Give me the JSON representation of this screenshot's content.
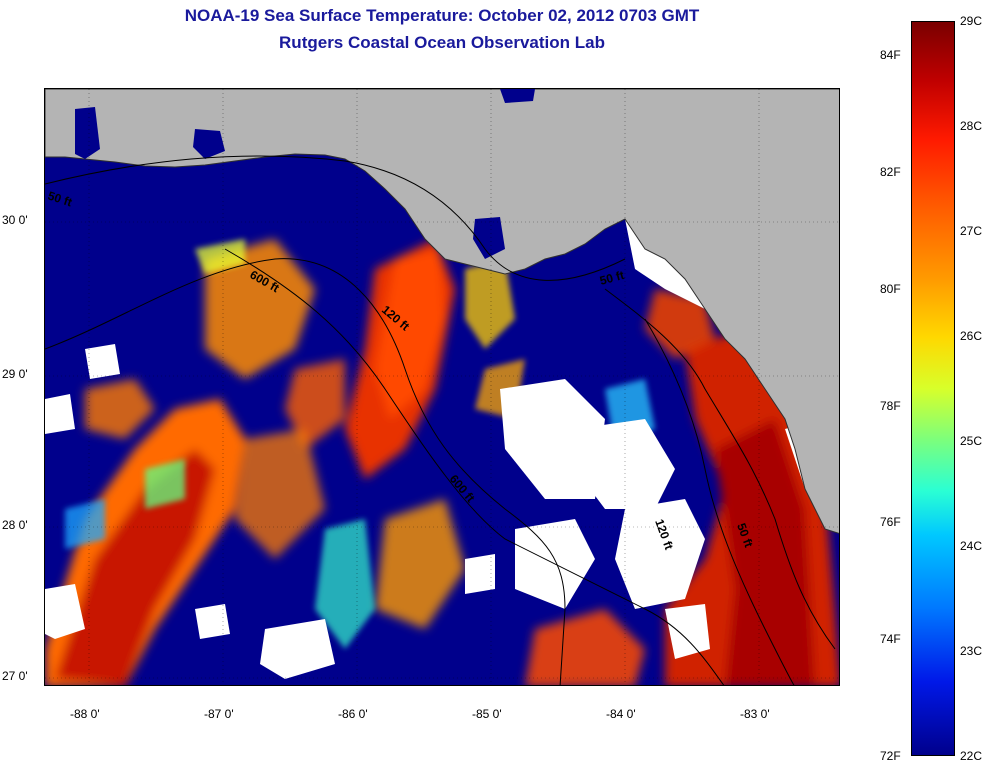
{
  "title": "NOAA-19 Sea Surface Temperature:  October 02, 2012 0703 GMT",
  "subtitle": "Rutgers Coastal Ocean Observation Lab",
  "colors": {
    "land": "#b4b4b4",
    "cloud_mask": "#ffffff",
    "cold_water": "#00008c",
    "warm_water": "#e03c00",
    "title_text": "#1a1a9c",
    "isobath": "#000000"
  },
  "map": {
    "lat_labels": [
      "30 0'",
      "29 0'",
      "28 0'",
      "27 0'"
    ],
    "lon_labels": [
      "-88 0'",
      "-87 0'",
      "-86 0'",
      "-85 0'",
      "-84 0'",
      "-83 0'"
    ],
    "isobath_labels": [
      "50 ft",
      "600 ft",
      "120 ft",
      "50 ft",
      "600 ft",
      "120 ft",
      "50 ft"
    ]
  },
  "colorbar": {
    "celsius_labels": [
      "29C",
      "28C",
      "27C",
      "26C",
      "25C",
      "24C",
      "23C",
      "22C"
    ],
    "fahrenheit_labels": [
      "84F",
      "82F",
      "80F",
      "78F",
      "76F",
      "74F",
      "72F"
    ],
    "range_c": [
      22,
      29
    ],
    "range_f": [
      72,
      84
    ]
  }
}
